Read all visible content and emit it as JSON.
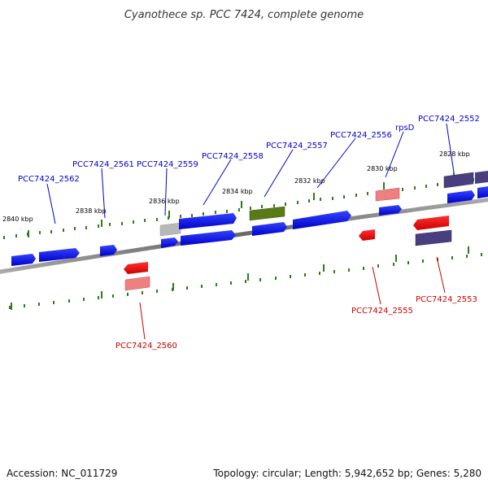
{
  "title": "Cyanothece sp. PCC 7424, complete genome",
  "footer": {
    "accession": "Accession: NC_011729",
    "summary": "Topology: circular; Length: 5,942,652 bp; Genes: 5,280"
  },
  "kbp_labels": [
    "2828 kbp",
    "2830 kbp",
    "2832 kbp",
    "2834 kbp",
    "2836 kbp",
    "2838 kbp",
    "2840 kbp"
  ],
  "gene_labels_forward": [
    "PCC7424_2552",
    "rpsD",
    "PCC7424_2556",
    "PCC7424_2557",
    "PCC7424_2558",
    "PCC7424_2559",
    "PCC7424_2561",
    "PCC7424_2562"
  ],
  "gene_labels_reverse": [
    "PCC7424_2553",
    "PCC7424_2555",
    "PCC7424_2560"
  ],
  "colors": {
    "forward_gene": "#0000ee",
    "reverse_gene": "#ee0000",
    "forward_label": "#0000cc",
    "reverse_label": "#cc0000",
    "light_red": "#ef8080",
    "dark_purple": "#4a3f7e",
    "olive": "#5a7a18",
    "gray": "#b0b0b0",
    "tick": "#2f7a1a",
    "backbone": "#888888"
  }
}
